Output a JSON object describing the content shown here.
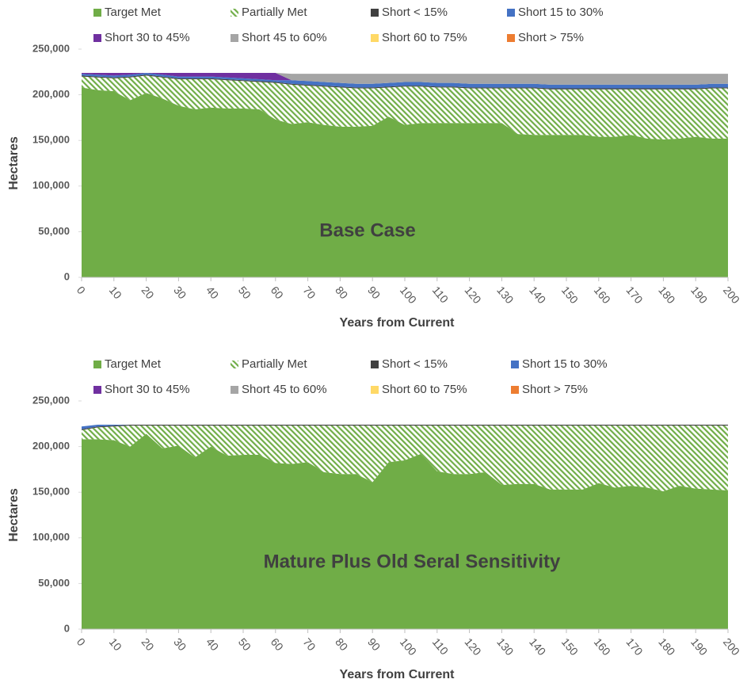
{
  "chart_data": [
    {
      "type": "stacked_area",
      "annotation": "Base Case",
      "xlabel": "Years from Current",
      "ylabel": "Hectares",
      "x": [
        0,
        5,
        10,
        15,
        20,
        25,
        30,
        35,
        40,
        45,
        50,
        55,
        60,
        65,
        70,
        75,
        80,
        85,
        90,
        95,
        100,
        105,
        110,
        115,
        120,
        125,
        130,
        135,
        140,
        145,
        150,
        155,
        160,
        165,
        170,
        175,
        180,
        185,
        190,
        195,
        200
      ],
      "xlim": [
        0,
        200
      ],
      "xticks": [
        0,
        10,
        20,
        30,
        40,
        50,
        60,
        70,
        80,
        90,
        100,
        110,
        120,
        130,
        140,
        150,
        160,
        170,
        180,
        190,
        200
      ],
      "ylim": [
        0,
        250000
      ],
      "yticks": [
        0,
        {
          "value": 50000,
          "label": "50,000"
        },
        {
          "value": 100000,
          "label": "100,000"
        },
        {
          "value": 150000,
          "label": "150,000"
        },
        {
          "value": 200000,
          "label": "200,000"
        },
        {
          "value": 250000,
          "label": "250,000"
        }
      ],
      "series": [
        {
          "name": "Target Met",
          "color": "#70ad47",
          "values": [
            208000,
            205000,
            204000,
            194000,
            202000,
            196000,
            188000,
            184000,
            186000,
            185000,
            185000,
            184000,
            173000,
            168000,
            170000,
            167000,
            165000,
            165000,
            166000,
            176000,
            167000,
            169000,
            169000,
            169000,
            169000,
            169000,
            169000,
            157000,
            156000,
            156000,
            156000,
            156000,
            154000,
            154000,
            156000,
            152000,
            151000,
            152000,
            154000,
            152000,
            152000
          ]
        },
        {
          "name": "Partially Met",
          "color": "#70ad47",
          "pattern": "hatch",
          "values": [
            12000,
            14000,
            14000,
            25000,
            19000,
            23000,
            29000,
            33000,
            31000,
            31000,
            30000,
            30000,
            40000,
            43000,
            40000,
            42000,
            43000,
            42000,
            41000,
            32000,
            42000,
            40000,
            39000,
            39000,
            38000,
            38000,
            38000,
            50000,
            51000,
            50000,
            50000,
            50000,
            52000,
            52000,
            50000,
            54000,
            55000,
            54000,
            52000,
            55000,
            55000
          ]
        },
        {
          "name": "Short < 15%",
          "color": "#404040",
          "values": [
            1000,
            1000,
            1000,
            1000,
            1000,
            1000,
            1000,
            1000,
            1000,
            1000,
            1000,
            1000,
            1000,
            1000,
            1000,
            1000,
            1000,
            1000,
            1000,
            1000,
            1000,
            1000,
            1000,
            1000,
            1000,
            1000,
            1000,
            1000,
            1000,
            1000,
            1000,
            1000,
            1000,
            1000,
            1000,
            1000,
            1000,
            1000,
            1000,
            1000,
            1000
          ]
        },
        {
          "name": "Short 15 to 30%",
          "color": "#4472c4",
          "values": [
            2000,
            2000,
            2000,
            2000,
            2000,
            2000,
            2000,
            2000,
            2000,
            2000,
            2000,
            2000,
            2000,
            4000,
            4000,
            4000,
            4000,
            4000,
            4000,
            4000,
            4000,
            4000,
            4000,
            4000,
            4000,
            4000,
            4000,
            4000,
            4000,
            4000,
            4000,
            4000,
            4000,
            4000,
            4000,
            4000,
            4000,
            4000,
            4000,
            4000,
            4000
          ]
        },
        {
          "name": "Short 30 to 45%",
          "color": "#7030a0",
          "values": [
            1000,
            2000,
            3000,
            2000,
            0,
            2000,
            4000,
            4000,
            4000,
            5000,
            6000,
            7000,
            8000,
            0,
            0,
            0,
            0,
            0,
            0,
            0,
            0,
            0,
            0,
            0,
            0,
            0,
            0,
            0,
            0,
            0,
            0,
            0,
            0,
            0,
            0,
            0,
            0,
            0,
            0,
            0,
            0
          ]
        },
        {
          "name": "Short 45 to 60%",
          "color": "#a5a5a5",
          "values": [
            0,
            0,
            0,
            0,
            0,
            0,
            0,
            0,
            0,
            0,
            0,
            0,
            0,
            7000,
            8000,
            9000,
            10000,
            11000,
            11000,
            10000,
            9000,
            9000,
            10000,
            10000,
            11000,
            11000,
            11000,
            11000,
            11000,
            12000,
            12000,
            12000,
            12000,
            12000,
            12000,
            12000,
            12000,
            12000,
            12000,
            11000,
            11000
          ]
        },
        {
          "name": "Short 60 to 75%",
          "color": "#ffd966",
          "values": [
            0,
            0,
            0,
            0,
            0,
            0,
            0,
            0,
            0,
            0,
            0,
            0,
            0,
            0,
            0,
            0,
            0,
            0,
            0,
            0,
            0,
            0,
            0,
            0,
            0,
            0,
            0,
            0,
            0,
            0,
            0,
            0,
            0,
            0,
            0,
            0,
            0,
            0,
            0,
            0,
            0
          ]
        },
        {
          "name": "Short > 75%",
          "color": "#ed7d31",
          "values": [
            0,
            0,
            0,
            0,
            0,
            0,
            0,
            0,
            0,
            0,
            0,
            0,
            0,
            0,
            0,
            0,
            0,
            0,
            0,
            0,
            0,
            0,
            0,
            0,
            0,
            0,
            0,
            0,
            0,
            0,
            0,
            0,
            0,
            0,
            0,
            0,
            0,
            0,
            0,
            0,
            0
          ]
        }
      ]
    },
    {
      "type": "stacked_area",
      "annotation": "Mature Plus Old Seral Sensitivity",
      "xlabel": "Years from Current",
      "ylabel": "Hectares",
      "x": [
        0,
        5,
        10,
        15,
        20,
        25,
        30,
        35,
        40,
        45,
        50,
        55,
        60,
        65,
        70,
        75,
        80,
        85,
        90,
        95,
        100,
        105,
        110,
        115,
        120,
        125,
        130,
        135,
        140,
        145,
        150,
        155,
        160,
        165,
        170,
        175,
        180,
        185,
        190,
        195,
        200
      ],
      "xlim": [
        0,
        200
      ],
      "xticks": [
        0,
        10,
        20,
        30,
        40,
        50,
        60,
        70,
        80,
        90,
        100,
        110,
        120,
        130,
        140,
        150,
        160,
        170,
        180,
        190,
        200
      ],
      "ylim": [
        0,
        250000
      ],
      "yticks": [
        0,
        {
          "value": 50000,
          "label": "50,000"
        },
        {
          "value": 100000,
          "label": "100,000"
        },
        {
          "value": 150000,
          "label": "150,000"
        },
        {
          "value": 200000,
          "label": "200,000"
        },
        {
          "value": 250000,
          "label": "250,000"
        }
      ],
      "series": [
        {
          "name": "Target Met",
          "color": "#70ad47",
          "values": [
            208000,
            208000,
            207000,
            200000,
            214000,
            198000,
            201000,
            188000,
            200000,
            190000,
            191000,
            191000,
            182000,
            181000,
            183000,
            172000,
            170000,
            170000,
            161000,
            183000,
            185000,
            192000,
            173000,
            170000,
            170000,
            172000,
            158000,
            159000,
            159000,
            153000,
            153000,
            153000,
            160000,
            155000,
            157000,
            155000,
            151000,
            157000,
            154000,
            153000,
            152000
          ]
        },
        {
          "name": "Partially Met",
          "color": "#70ad47",
          "pattern": "hatch",
          "values": [
            10000,
            13000,
            15000,
            23000,
            9000,
            25000,
            22000,
            35000,
            23000,
            33000,
            32000,
            32000,
            41000,
            42000,
            40000,
            51000,
            53000,
            53000,
            62000,
            40000,
            38000,
            31000,
            50000,
            53000,
            53000,
            51000,
            65000,
            64000,
            64000,
            70000,
            70000,
            70000,
            63000,
            68000,
            66000,
            68000,
            72000,
            66000,
            69000,
            70000,
            71000
          ]
        },
        {
          "name": "Short < 15%",
          "color": "#404040",
          "values": [
            1000,
            1000,
            1000,
            1000,
            1000,
            1000,
            1000,
            1000,
            1000,
            1000,
            1000,
            1000,
            1000,
            1000,
            1000,
            1000,
            1000,
            1000,
            1000,
            1000,
            1000,
            1000,
            1000,
            1000,
            1000,
            1000,
            1000,
            1000,
            1000,
            1000,
            1000,
            1000,
            1000,
            1000,
            1000,
            1000,
            1000,
            1000,
            1000,
            1000,
            1000
          ]
        },
        {
          "name": "Short 15 to 30%",
          "color": "#4472c4",
          "values": [
            3000,
            2000,
            1000,
            0,
            0,
            0,
            0,
            0,
            0,
            0,
            0,
            0,
            0,
            0,
            0,
            0,
            0,
            0,
            0,
            0,
            0,
            0,
            0,
            0,
            0,
            0,
            0,
            0,
            0,
            0,
            0,
            0,
            0,
            0,
            0,
            0,
            0,
            0,
            0,
            0,
            0
          ]
        },
        {
          "name": "Short 30 to 45%",
          "color": "#7030a0",
          "values": [
            0,
            0,
            0,
            0,
            0,
            0,
            0,
            0,
            0,
            0,
            0,
            0,
            0,
            0,
            0,
            0,
            0,
            0,
            0,
            0,
            0,
            0,
            0,
            0,
            0,
            0,
            0,
            0,
            0,
            0,
            0,
            0,
            0,
            0,
            0,
            0,
            0,
            0,
            0,
            0,
            0
          ]
        },
        {
          "name": "Short 45 to 60%",
          "color": "#a5a5a5",
          "values": [
            0,
            0,
            0,
            0,
            0,
            0,
            0,
            0,
            0,
            0,
            0,
            0,
            0,
            0,
            0,
            0,
            0,
            0,
            0,
            0,
            0,
            0,
            0,
            0,
            0,
            0,
            0,
            0,
            0,
            0,
            0,
            0,
            0,
            0,
            0,
            0,
            0,
            0,
            0,
            0,
            0
          ]
        },
        {
          "name": "Short 60 to 75%",
          "color": "#ffd966",
          "values": [
            0,
            0,
            0,
            0,
            0,
            0,
            0,
            0,
            0,
            0,
            0,
            0,
            0,
            0,
            0,
            0,
            0,
            0,
            0,
            0,
            0,
            0,
            0,
            0,
            0,
            0,
            0,
            0,
            0,
            0,
            0,
            0,
            0,
            0,
            0,
            0,
            0,
            0,
            0,
            0,
            0
          ]
        },
        {
          "name": "Short > 75%",
          "color": "#ed7d31",
          "values": [
            0,
            0,
            0,
            0,
            0,
            0,
            0,
            0,
            0,
            0,
            0,
            0,
            0,
            0,
            0,
            0,
            0,
            0,
            0,
            0,
            0,
            0,
            0,
            0,
            0,
            0,
            0,
            0,
            0,
            0,
            0,
            0,
            0,
            0,
            0,
            0,
            0,
            0,
            0,
            0,
            0
          ]
        }
      ]
    }
  ]
}
